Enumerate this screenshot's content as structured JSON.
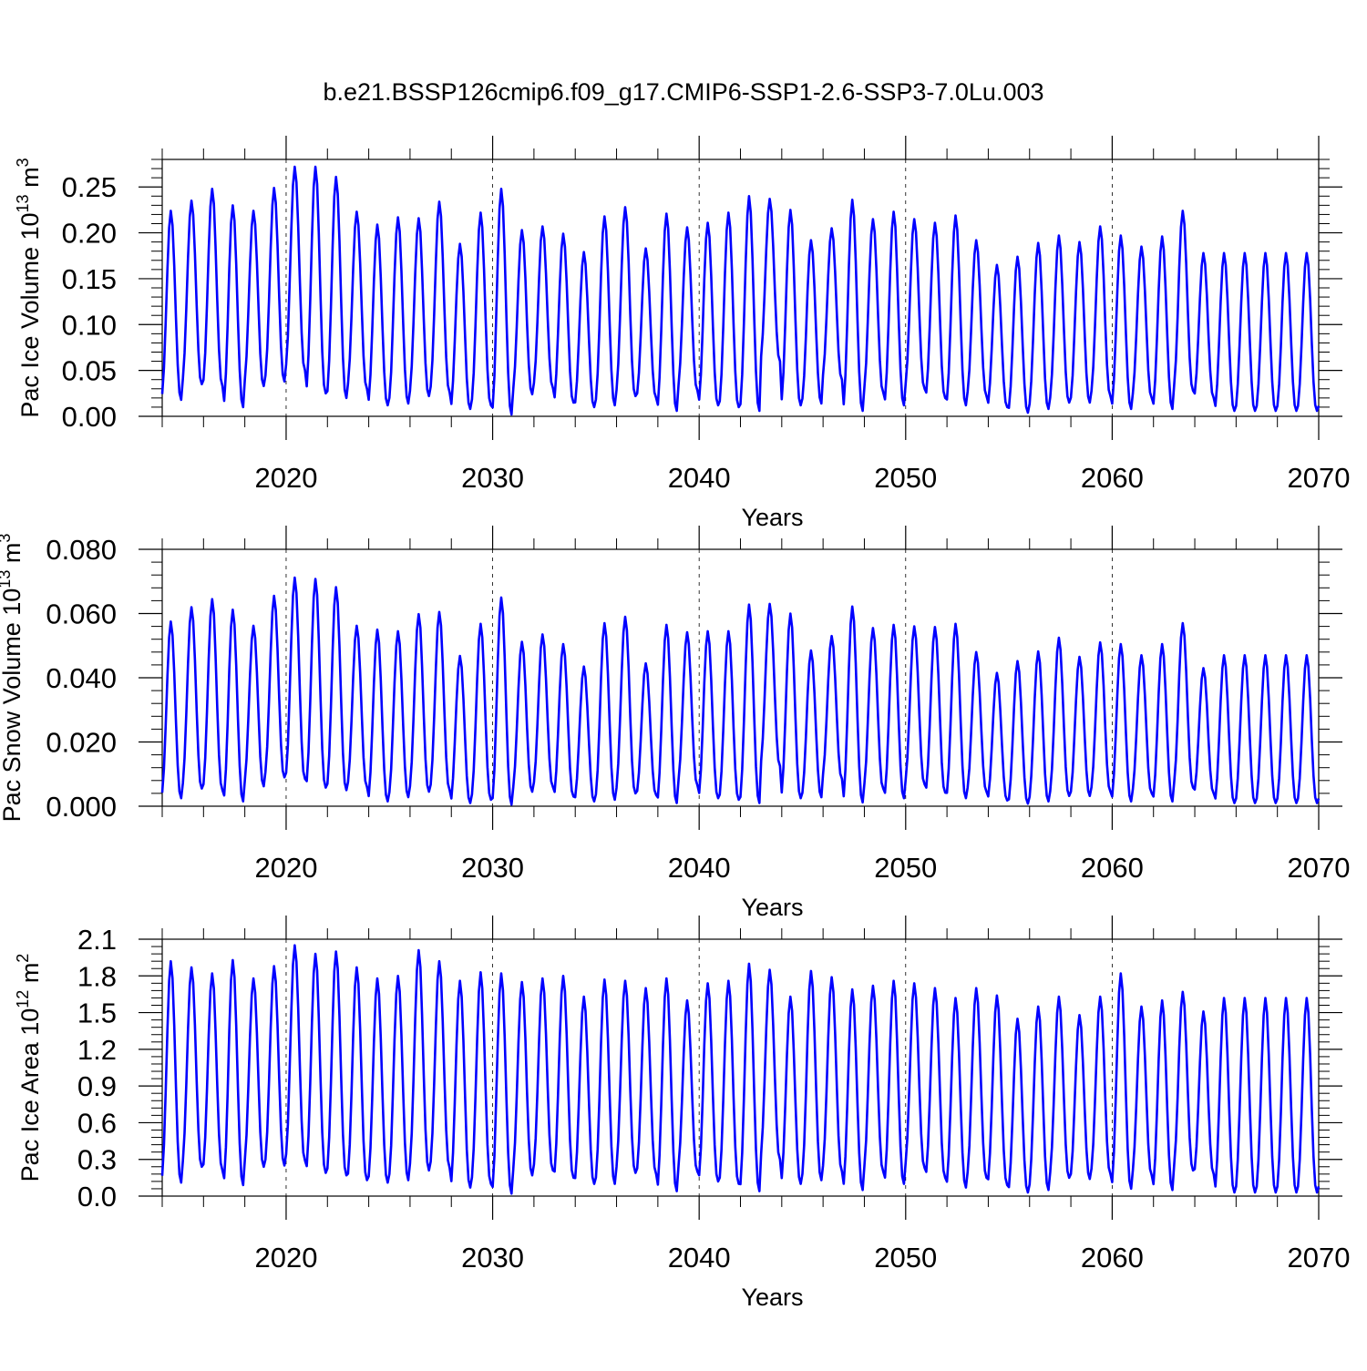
{
  "figure": {
    "title": "b.e21.BSSP126cmip6.f09_g17.CMIP6-SSP1-2.6-SSP3-7.0Lu.003",
    "line_color": "#0000ff"
  },
  "chart_data": [
    {
      "type": "line",
      "id": "ice-volume",
      "ylabel_main": "Pac Ice Volume 10",
      "ylabel_exp": "13",
      "ylabel_unit": " m",
      "ylabel_unit_exp": "3",
      "xlabel": "Years",
      "xlim": [
        2014,
        2070
      ],
      "ylim": [
        0.0,
        0.28
      ],
      "yticks": [
        0.0,
        0.05,
        0.1,
        0.15,
        0.2,
        0.25
      ],
      "ytick_labels": [
        "0.00",
        "0.05",
        "0.10",
        "0.15",
        "0.20",
        "0.25"
      ],
      "xticks": [
        2020,
        2030,
        2040,
        2050,
        2060,
        2070
      ],
      "xtick_labels": [
        "2020",
        "2030",
        "2040",
        "2050",
        "2060",
        "2070"
      ],
      "grid": "vertical dashed at major x ticks",
      "series": [
        {
          "name": "Pac Ice Volume",
          "x_start": 2014.0,
          "x_step_years": 1,
          "annual_max": [
            0.224,
            0.235,
            0.248,
            0.23,
            0.224,
            0.249,
            0.272,
            0.272,
            0.261,
            0.223,
            0.209,
            0.217,
            0.216,
            0.234,
            0.188,
            0.222,
            0.248,
            0.203,
            0.207,
            0.199,
            0.179,
            0.218,
            0.228,
            0.183,
            0.221,
            0.206,
            0.211,
            0.222,
            0.24,
            0.237,
            0.225,
            0.192,
            0.205,
            0.236,
            0.215,
            0.223,
            0.215,
            0.211,
            0.219,
            0.192,
            0.165,
            0.174,
            0.189,
            0.197,
            0.19,
            0.207,
            0.197,
            0.185,
            0.196,
            0.224,
            0.178,
            0.178
          ],
          "annual_min": [
            0.018,
            0.035,
            0.033,
            0.01,
            0.033,
            0.038,
            0.05,
            0.025,
            0.02,
            0.03,
            0.012,
            0.014,
            0.022,
            0.026,
            0.008,
            0.012,
            0.002,
            0.024,
            0.031,
            0.015,
            0.01,
            0.012,
            0.022,
            0.02,
            0.006,
            0.028,
            0.012,
            0.01,
            0.006,
            0.06,
            0.012,
            0.014,
            0.04,
            0.006,
            0.026,
            0.012,
            0.03,
            0.02,
            0.012,
            0.022,
            0.01,
            0.004,
            0.008,
            0.015,
            0.015,
            0.022,
            0.008,
            0.02,
            0.008,
            0.028,
            0.02,
            0.006
          ]
        }
      ]
    },
    {
      "type": "line",
      "id": "snow-volume",
      "ylabel_main": "Pac Snow Volume 10",
      "ylabel_exp": "13",
      "ylabel_unit": " m",
      "ylabel_unit_exp": "3",
      "xlabel": "Years",
      "xlim": [
        2014,
        2070
      ],
      "ylim": [
        0.0,
        0.08
      ],
      "yticks": [
        0.0,
        0.02,
        0.04,
        0.06,
        0.08
      ],
      "ytick_labels": [
        "0.000",
        "0.020",
        "0.040",
        "0.060",
        "0.080"
      ],
      "xticks": [
        2020,
        2030,
        2040,
        2050,
        2060,
        2070
      ],
      "xtick_labels": [
        "2020",
        "2030",
        "2040",
        "2050",
        "2060",
        "2070"
      ],
      "grid": "vertical dashed at major x ticks",
      "series": [
        {
          "name": "Pac Snow Volume",
          "x_start": 2014.0,
          "x_step_years": 1,
          "annual_max": [
            0.0575,
            0.062,
            0.0645,
            0.0612,
            0.0562,
            0.0655,
            0.0712,
            0.0708,
            0.0682,
            0.0562,
            0.055,
            0.0545,
            0.0598,
            0.0605,
            0.0468,
            0.0568,
            0.065,
            0.0512,
            0.0535,
            0.0505,
            0.0435,
            0.057,
            0.059,
            0.0445,
            0.0565,
            0.0542,
            0.0545,
            0.0545,
            0.0628,
            0.063,
            0.06,
            0.0485,
            0.053,
            0.0622,
            0.0555,
            0.0565,
            0.056,
            0.0558,
            0.0568,
            0.048,
            0.0415,
            0.0452,
            0.0482,
            0.0525,
            0.0465,
            0.051,
            0.0505,
            0.047,
            0.0505,
            0.057,
            0.043,
            0.047
          ],
          "annual_min": [
            0.0025,
            0.0055,
            0.005,
            0.0015,
            0.0062,
            0.009,
            0.0085,
            0.0058,
            0.005,
            0.006,
            0.0015,
            0.0028,
            0.0045,
            0.005,
            0.001,
            0.002,
            0.0005,
            0.0045,
            0.006,
            0.003,
            0.0015,
            0.002,
            0.004,
            0.0035,
            0.001,
            0.0065,
            0.0025,
            0.002,
            0.001,
            0.0125,
            0.0025,
            0.0028,
            0.0085,
            0.0012,
            0.0055,
            0.0025,
            0.0068,
            0.0042,
            0.0025,
            0.0045,
            0.0018,
            0.0008,
            0.0015,
            0.0032,
            0.0032,
            0.0045,
            0.0015,
            0.004,
            0.0015,
            0.0058,
            0.004,
            0.001
          ]
        }
      ]
    },
    {
      "type": "line",
      "id": "ice-area",
      "ylabel_main": "Pac Ice Area 10",
      "ylabel_exp": "12",
      "ylabel_unit": " m",
      "ylabel_unit_exp": "2",
      "xlabel": "Years",
      "xlim": [
        2014,
        2070
      ],
      "ylim": [
        0.0,
        2.1
      ],
      "yticks": [
        0.0,
        0.3,
        0.6,
        0.9,
        1.2,
        1.5,
        1.8,
        2.1
      ],
      "ytick_labels": [
        "0.0",
        "0.3",
        "0.6",
        "0.9",
        "1.2",
        "1.5",
        "1.8",
        "2.1"
      ],
      "xticks": [
        2020,
        2030,
        2040,
        2050,
        2060,
        2070
      ],
      "xtick_labels": [
        "2020",
        "2030",
        "2040",
        "2050",
        "2060",
        "2070"
      ],
      "grid": "vertical dashed at major x ticks",
      "series": [
        {
          "name": "Pac Ice Area",
          "x_start": 2014.0,
          "x_step_years": 1,
          "annual_max": [
            1.92,
            1.87,
            1.82,
            1.93,
            1.78,
            1.88,
            2.05,
            1.98,
            2.0,
            1.87,
            1.78,
            1.8,
            2.01,
            1.92,
            1.76,
            1.83,
            1.82,
            1.75,
            1.78,
            1.8,
            1.63,
            1.77,
            1.76,
            1.7,
            1.78,
            1.6,
            1.74,
            1.76,
            1.9,
            1.85,
            1.63,
            1.84,
            1.79,
            1.69,
            1.72,
            1.76,
            1.74,
            1.7,
            1.62,
            1.7,
            1.64,
            1.45,
            1.55,
            1.63,
            1.48,
            1.63,
            1.82,
            1.55,
            1.6,
            1.67,
            1.51,
            1.62
          ],
          "annual_min": [
            0.11,
            0.24,
            0.21,
            0.09,
            0.24,
            0.25,
            0.29,
            0.19,
            0.17,
            0.13,
            0.11,
            0.13,
            0.21,
            0.23,
            0.07,
            0.1,
            0.02,
            0.17,
            0.21,
            0.15,
            0.1,
            0.1,
            0.19,
            0.18,
            0.04,
            0.2,
            0.12,
            0.1,
            0.04,
            0.3,
            0.1,
            0.13,
            0.2,
            0.05,
            0.2,
            0.1,
            0.23,
            0.15,
            0.07,
            0.15,
            0.09,
            0.03,
            0.05,
            0.15,
            0.14,
            0.18,
            0.06,
            0.17,
            0.05,
            0.21,
            0.18,
            0.03
          ]
        }
      ]
    }
  ]
}
